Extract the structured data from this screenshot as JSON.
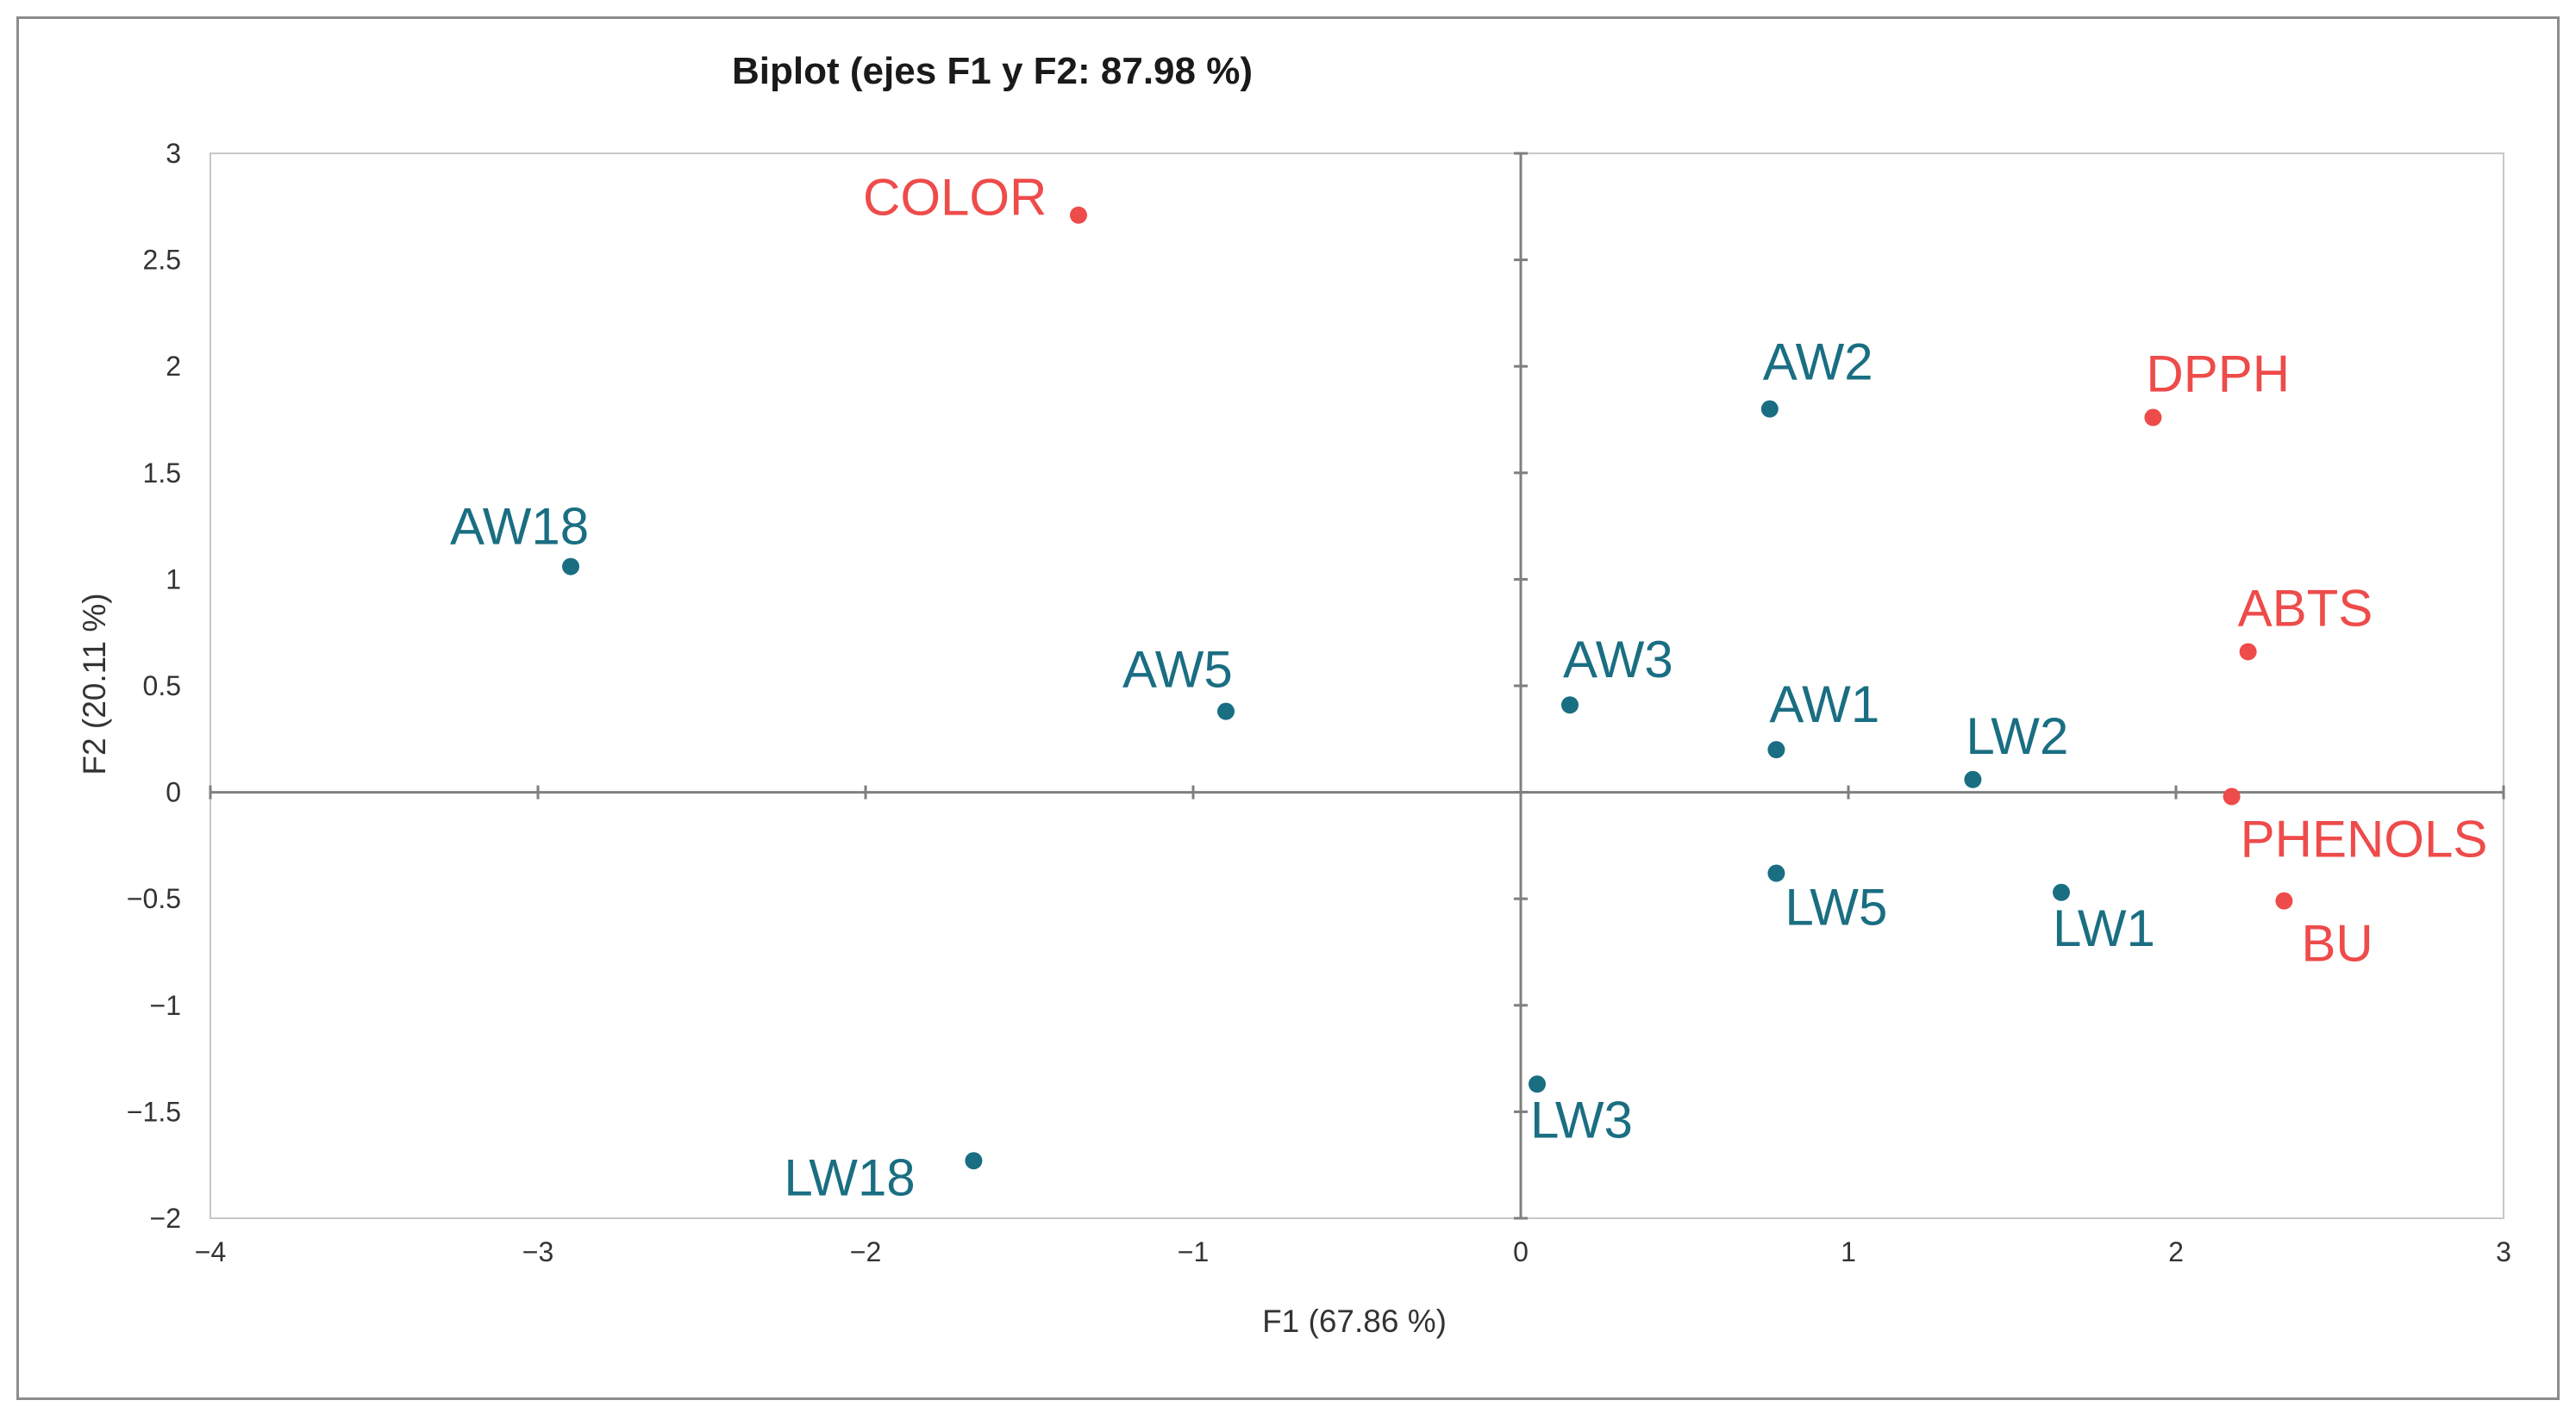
{
  "chart_data": {
    "type": "scatter",
    "title": "Biplot (ejes F1 y F2: 87.98 %)",
    "xlabel": "F1 (67.86 %)",
    "ylabel": "F2 (20.11 %)",
    "xlim": [
      -4,
      3
    ],
    "ylim": [
      -2,
      3
    ],
    "xticks": [
      -4,
      -3,
      -2,
      -1,
      0,
      1,
      2,
      3
    ],
    "yticks": [
      -2,
      -1.5,
      -1,
      -0.5,
      0,
      0.5,
      1,
      1.5,
      2,
      2.5,
      3
    ],
    "xtick_labels": [
      "−4",
      "−3",
      "−2",
      "−1",
      "0",
      "1",
      "2",
      "3"
    ],
    "ytick_labels": [
      "−2",
      "−1.5",
      "−1",
      "−0.5",
      "0",
      "0.5",
      "1",
      "1.5",
      "2",
      "2.5",
      "3"
    ],
    "grid": false,
    "legend": "none",
    "colors": {
      "observations": "#1a6e82",
      "variables": "#ee4b4b"
    },
    "series": [
      {
        "group": "observations",
        "points": [
          {
            "label": "AW18",
            "x": -2.9,
            "y": 1.06
          },
          {
            "label": "AW5",
            "x": -0.9,
            "y": 0.38
          },
          {
            "label": "AW3",
            "x": 0.15,
            "y": 0.41
          },
          {
            "label": "AW2",
            "x": 0.76,
            "y": 1.8
          },
          {
            "label": "AW1",
            "x": 0.78,
            "y": 0.2
          },
          {
            "label": "LW2",
            "x": 1.38,
            "y": 0.06
          },
          {
            "label": "LW5",
            "x": 0.78,
            "y": -0.38
          },
          {
            "label": "LW1",
            "x": 1.65,
            "y": -0.47
          },
          {
            "label": "LW3",
            "x": 0.05,
            "y": -1.37
          },
          {
            "label": "LW18",
            "x": -1.67,
            "y": -1.73
          }
        ]
      },
      {
        "group": "variables",
        "points": [
          {
            "label": "COLOR",
            "x": -1.35,
            "y": 2.71
          },
          {
            "label": "DPPH",
            "x": 1.93,
            "y": 1.76
          },
          {
            "label": "ABTS",
            "x": 2.22,
            "y": 0.66
          },
          {
            "label": "PHENOLS",
            "x": 2.17,
            "y": -0.02
          },
          {
            "label": "BU",
            "x": 2.33,
            "y": -0.51
          }
        ]
      }
    ]
  }
}
